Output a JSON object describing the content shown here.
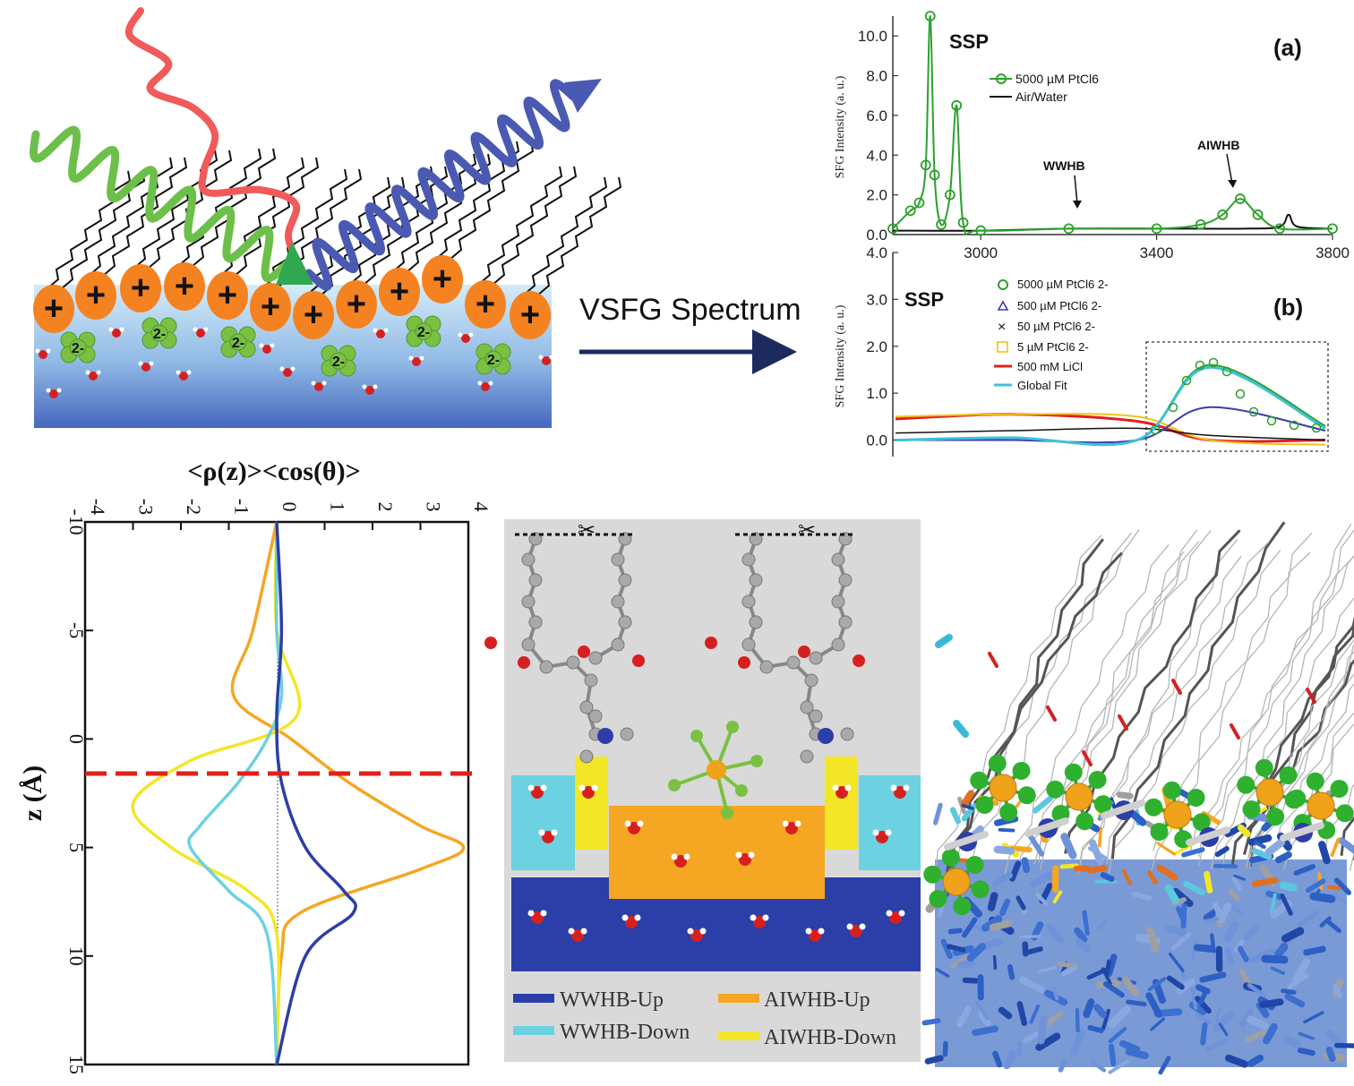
{
  "colors": {
    "plus_orange": "#f58220",
    "water_top": "#cfe8f7",
    "water_bottom": "#4f74c2",
    "green_curve": "#2ca02c",
    "ions_green": "#7ac143",
    "wave_green": "#6cc04a",
    "wave_red": "#f05a5a",
    "wave_blue": "#4a5ab3",
    "wwhb_up": "#2c3ea8",
    "wwhb_down": "#6cd1e0",
    "aiwhb_up": "#f5a623",
    "aiwhb_down": "#f2e627",
    "red_dashed": "#e0201b",
    "arrow_navy": "#1c2a5e"
  },
  "schematic": {
    "charge_label": "+",
    "ion_label": "2-"
  },
  "arrow_label": "VSFG Spectrum",
  "panel_a": {
    "polarization": "SSP",
    "letter": "(a)",
    "ylabel": "SFG Intensity (a. u.)",
    "yticks": [
      "0.0",
      "2.0",
      "4.0",
      "6.0",
      "8.0",
      "10.0"
    ],
    "xticks": [
      "3000",
      "3400",
      "3800"
    ],
    "legend": [
      "5000 µM PtCl6",
      "Air/Water"
    ],
    "annotations": [
      "WWHB",
      "AIWHB"
    ]
  },
  "panel_b": {
    "polarization": "SSP",
    "letter": "(b)",
    "ylabel": "SFG Intensity (a. u.)",
    "yticks": [
      "0.0",
      "1.0",
      "2.0",
      "3.0",
      "4.0"
    ],
    "legend": [
      "5000 µM PtCl6 2-",
      "500 µM PtCl6 2-",
      "50 µM PtCl6 2-",
      "5 µM PtCl6 2-",
      "500 mM LiCl",
      "Global Fit"
    ]
  },
  "density_plot": {
    "title": "<ρ(z)><cos(θ)>",
    "ylabel": "z (Å)",
    "xticks": [
      "-4",
      "-3",
      "-2",
      "-1",
      "0",
      "1",
      "2",
      "3",
      "4"
    ],
    "yticks": [
      "-10",
      "-5",
      "0",
      "5",
      "10",
      "15"
    ]
  },
  "layer_legend": {
    "items": [
      "WWHB-Up",
      "AIWHB-Up",
      "WWHB-Down",
      "AIWHB-Down"
    ]
  },
  "chart_data": [
    {
      "type": "line",
      "panel": "(a)",
      "xlim": [
        2800,
        3800
      ],
      "ylim": [
        0,
        11
      ],
      "series": [
        {
          "name": "5000 µM PtCl6",
          "x": [
            2800,
            2840,
            2860,
            2875,
            2885,
            2895,
            2910,
            2930,
            2945,
            2960,
            3000,
            3200,
            3400,
            3500,
            3550,
            3590,
            3630,
            3680,
            3800
          ],
          "y": [
            0.3,
            1.2,
            1.6,
            3.5,
            11.0,
            3.0,
            0.5,
            2.0,
            6.5,
            0.6,
            0.2,
            0.3,
            0.3,
            0.5,
            1.0,
            1.8,
            1.0,
            0.3,
            0.3
          ]
        },
        {
          "name": "Air/Water",
          "x": [
            2800,
            3000,
            3200,
            3400,
            3600,
            3680,
            3700,
            3720,
            3800
          ],
          "y": [
            0.2,
            0.2,
            0.3,
            0.3,
            0.3,
            0.4,
            1.0,
            0.4,
            0.3
          ]
        }
      ]
    },
    {
      "type": "line",
      "panel": "(b)",
      "ylim": [
        -0.2,
        4.0
      ],
      "series": [
        {
          "name": "5000 µM PtCl6 2-",
          "y": [
            0.0,
            0.05,
            0.0,
            1.6,
            0.3
          ]
        },
        {
          "name": "500 µM PtCl6 2-",
          "y": [
            0.0,
            0.0,
            0.0,
            0.7,
            0.2
          ]
        },
        {
          "name": "50 µM PtCl6 2-",
          "y": [
            0.15,
            0.2,
            0.25,
            0.1,
            0.0
          ]
        },
        {
          "name": "5 µM PtCl6 2-",
          "y": [
            0.5,
            0.55,
            0.5,
            0.0,
            -0.1
          ]
        },
        {
          "name": "500 mM LiCl",
          "y": [
            0.45,
            0.55,
            0.4,
            0.0,
            0.0
          ]
        },
        {
          "name": "Global Fit",
          "y": [
            0.0,
            0.05,
            0.0,
            1.55,
            0.25
          ]
        }
      ]
    },
    {
      "type": "line",
      "panel": "density",
      "xlim": [
        -4,
        4
      ],
      "ylim": [
        -10,
        15
      ],
      "series": [
        {
          "name": "WWHB-Up",
          "z": [
            -10,
            -5,
            -1,
            2,
            5,
            7,
            8,
            10,
            15
          ],
          "v": [
            0,
            0.1,
            0,
            0.1,
            0.6,
            1.4,
            1.6,
            0.6,
            0
          ]
        },
        {
          "name": "WWHB-Down",
          "z": [
            -10,
            -5,
            -2,
            0,
            2,
            4,
            5,
            7,
            9,
            15
          ],
          "v": [
            0,
            0,
            0.1,
            -0.2,
            -0.8,
            -1.6,
            -1.8,
            -1.0,
            -0.2,
            0
          ]
        },
        {
          "name": "AIWHB-Up",
          "z": [
            -10,
            -5,
            -2,
            0,
            2,
            4,
            5,
            6,
            8,
            10,
            15
          ],
          "v": [
            0,
            -0.5,
            -0.9,
            0.3,
            1.5,
            3.0,
            3.9,
            3.0,
            0.5,
            0.1,
            0
          ]
        },
        {
          "name": "AIWHB-Down",
          "z": [
            -10,
            -5,
            -1,
            1,
            3,
            5,
            7,
            9,
            15
          ],
          "v": [
            0,
            0,
            0.4,
            -1.8,
            -3.0,
            -2.2,
            -0.6,
            0,
            0
          ]
        }
      ]
    }
  ]
}
